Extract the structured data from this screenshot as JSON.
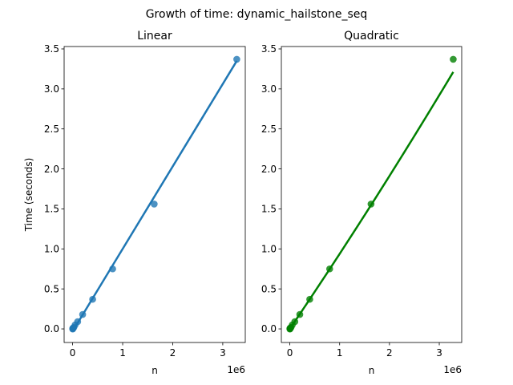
{
  "suptitle": "Growth of time: dynamic_hailstone_seq",
  "chart_data": [
    {
      "type": "scatter",
      "title": "Linear",
      "xlabel": "n",
      "ylabel": "Time (seconds)",
      "x_offset_label": "1e6",
      "xlim": [
        -170000,
        3450000
      ],
      "ylim": [
        -0.17,
        3.53
      ],
      "xticks": [
        0,
        1000000,
        2000000,
        3000000
      ],
      "xtick_labels": [
        "0",
        "1",
        "2",
        "3"
      ],
      "yticks": [
        0.0,
        0.5,
        1.0,
        1.5,
        2.0,
        2.5,
        3.0,
        3.5
      ],
      "ytick_labels": [
        "0.0",
        "0.5",
        "1.0",
        "1.5",
        "2.0",
        "2.5",
        "3.0",
        "3.5"
      ],
      "color": "#1f77b4",
      "points": {
        "x": [
          1000,
          3000,
          6000,
          12000,
          25000,
          50000,
          100000,
          200000,
          400000,
          800000,
          1630000,
          3280000
        ],
        "y": [
          0.0,
          0.0,
          0.01,
          0.01,
          0.02,
          0.05,
          0.09,
          0.18,
          0.37,
          0.75,
          1.56,
          3.37
        ]
      },
      "fit": {
        "kind": "linear",
        "x": [
          0,
          3280000
        ],
        "y": [
          -0.03,
          3.35
        ]
      }
    },
    {
      "type": "scatter",
      "title": "Quadratic",
      "xlabel": "n",
      "ylabel": "",
      "x_offset_label": "1e6",
      "xlim": [
        -170000,
        3450000
      ],
      "ylim": [
        -0.17,
        3.53
      ],
      "xticks": [
        0,
        1000000,
        2000000,
        3000000
      ],
      "xtick_labels": [
        "0",
        "1",
        "2",
        "3"
      ],
      "yticks": [
        0.0,
        0.5,
        1.0,
        1.5,
        2.0,
        2.5,
        3.0,
        3.5
      ],
      "ytick_labels": [
        "0.0",
        "0.5",
        "1.0",
        "1.5",
        "2.0",
        "2.5",
        "3.0",
        "3.5"
      ],
      "color": "#008000",
      "points": {
        "x": [
          1000,
          3000,
          6000,
          12000,
          25000,
          50000,
          100000,
          200000,
          400000,
          800000,
          1630000,
          3280000
        ],
        "y": [
          0.0,
          0.0,
          0.01,
          0.01,
          0.02,
          0.05,
          0.09,
          0.18,
          0.37,
          0.75,
          1.56,
          3.37
        ]
      },
      "fit": {
        "kind": "quadratic",
        "a": 0.0,
        "b": 9.2e-07,
        "c": 1.8e-14
      }
    }
  ]
}
